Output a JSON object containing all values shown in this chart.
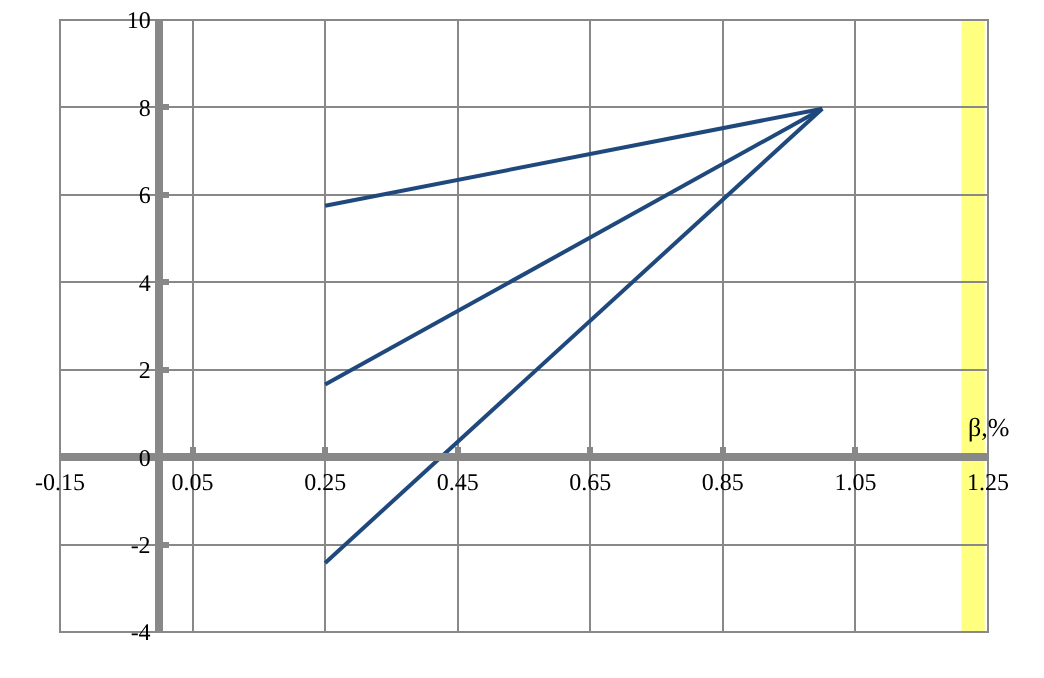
{
  "chart_data": {
    "type": "line",
    "xlabel": "β,%",
    "x": [
      0.25,
      1.0
    ],
    "series": [
      {
        "color": "#1f497d",
        "values": [
          5.75,
          7.97
        ]
      },
      {
        "color": "#1f497d",
        "values": [
          1.66,
          7.97
        ]
      },
      {
        "color": "#1f497d",
        "values": [
          -2.42,
          7.97
        ]
      }
    ],
    "xlim": [
      -0.15,
      1.25
    ],
    "xticks": [
      -0.15,
      0.05,
      0.25,
      0.45,
      0.65,
      0.85,
      1.05,
      1.25
    ],
    "ylim": [
      -4,
      10
    ],
    "yticks": [
      -4,
      -2,
      0,
      2,
      4,
      6,
      8,
      10
    ],
    "bands": [
      {
        "axis": "x",
        "from": 1.21,
        "to": 1.245,
        "color": "#ffff80"
      }
    ],
    "grid": true,
    "marker": "none",
    "line_style": "solid"
  }
}
